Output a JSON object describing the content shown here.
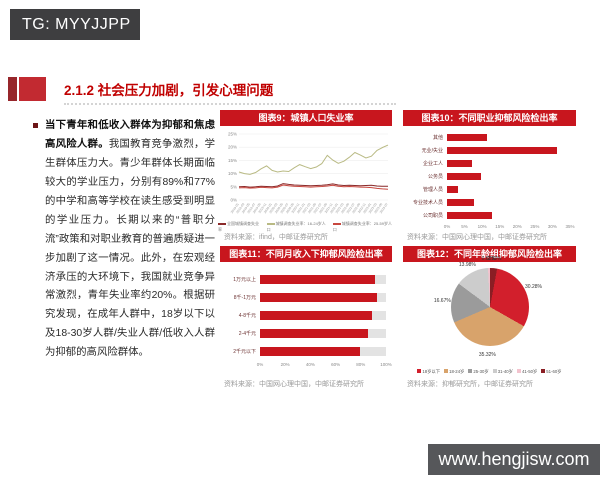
{
  "page": {
    "tg_banner": "TG: MYYJJPP",
    "website_banner": "www.hengjisw.com",
    "section_title": "2.1.2 社会压力加剧，引发心理问题",
    "paragraph_bold": "当下青年和低收入群体为抑郁和焦虑高风险人群。",
    "paragraph_rest": "我国教育竞争激烈，学生群体压力大。青少年群体长期面临较大的学业压力，分别有89%和77%的中学和高等学校在读生感受到明显的学业压力。长期以来的“普职分流”政策和对职业教育的普遍质疑进一步加剧了这一情况。此外，在宏观经济承压的大环境下，我国就业竞争异常激烈，青年失业率约20%。根据研究发现，在成年人群中，18岁以下以及18-30岁人群/失业人群/低收入人群为抑郁的高风险群体。"
  },
  "colors": {
    "header_red": "#c8161e",
    "title_red": "#c00000",
    "bar_red": "#c8161e",
    "banner_dark": "#3e3e40"
  },
  "chart_data": {
    "chart9": {
      "type": "line",
      "title": "图表9：城镇人口失业率",
      "source": "资料来源：ifind，中邮证券研究所",
      "ylim": [
        0,
        25
      ],
      "yticks": [
        "0%",
        "5%",
        "10%",
        "15%",
        "20%",
        "25%"
      ],
      "x_labels": [
        "2019-01",
        "2019-03",
        "2019-05",
        "2019-07",
        "2019-09",
        "2019-11",
        "2020-01",
        "2020-03",
        "2020-05",
        "2020-07",
        "2020-09",
        "2020-11",
        "2021-01",
        "2021-03",
        "2021-05",
        "2021-07",
        "2021-09",
        "2021-11",
        "2022-01",
        "2022-03",
        "2022-05",
        "2022-07",
        "2022-09",
        "2022-11",
        "2023-01",
        "2023-03",
        "2023-05",
        "2023-07"
      ],
      "series": [
        {
          "name": "全国城镇调查失业率",
          "color": "#8b2a2a",
          "values": [
            5.0,
            5.1,
            4.9,
            5.0,
            5.2,
            5.1,
            5.0,
            5.3,
            6.2,
            5.9,
            5.7,
            5.6,
            5.5,
            5.4,
            5.5,
            5.6,
            5.8,
            6.1,
            5.7,
            5.5,
            5.6,
            5.5,
            5.4,
            5.5,
            5.6,
            5.3,
            5.2,
            5.2
          ]
        },
        {
          "name": "城镇调查失业率：16-24岁人口",
          "color": "#b9ba84",
          "values": [
            10.6,
            10.0,
            9.7,
            10.4,
            11.8,
            12.9,
            11.2,
            10.6,
            11.0,
            10.8,
            12.2,
            13.4,
            12.6,
            11.9,
            12.5,
            13.8,
            16.9,
            15.1,
            13.9,
            14.7,
            16.2,
            18.0,
            17.0,
            15.9,
            16.6,
            18.8,
            19.9,
            20.8
          ]
        },
        {
          "name": "城镇调查失业率：25-59岁人口",
          "color": "#c8473f",
          "values": [
            4.6,
            4.7,
            4.5,
            4.6,
            4.8,
            4.7,
            4.6,
            4.9,
            5.7,
            5.4,
            5.2,
            5.1,
            5.0,
            4.9,
            5.0,
            5.1,
            5.3,
            5.6,
            5.2,
            5.0,
            5.1,
            5.0,
            4.9,
            4.8,
            4.7,
            4.4,
            4.2,
            4.1
          ]
        }
      ]
    },
    "chart10": {
      "type": "bar",
      "title": "图表10：不同职业抑郁风险检出率",
      "source": "资料来源：中国网心理中国，中邮证券研究所",
      "categories": [
        "其他",
        "无业/失业",
        "企业工人",
        "公务员",
        "管理人员",
        "专业技术人员",
        "公司职员"
      ],
      "values": [
        11.5,
        31.2,
        7.2,
        9.8,
        3.2,
        7.7,
        12.9
      ],
      "xlim": [
        0,
        35
      ],
      "xticks": [
        0,
        5,
        10,
        15,
        20,
        25,
        30,
        35
      ]
    },
    "chart11": {
      "type": "bar",
      "title": "图表11：不同月收入下抑郁风险检出率",
      "source": "资料来源：中国网心理中国，中邮证券研究所",
      "categories": [
        "1万元以上",
        "8千-1万元",
        "4-8千元",
        "2-4千元",
        "2千元以下"
      ],
      "values": [
        91,
        93,
        89,
        86,
        79
      ],
      "xlim": [
        0,
        100
      ],
      "xticks": [
        0,
        20,
        40,
        60,
        80,
        100
      ]
    },
    "chart12": {
      "type": "pie",
      "title": "图表12：不同年龄组抑郁风险检出率",
      "source": "资料来源：抑郁研究所，中邮证券研究所",
      "slices": [
        {
          "label": "51-60岁",
          "value": 2.93,
          "color": "#8a1e24"
        },
        {
          "label": "18岁以下",
          "value": 30.28,
          "color": "#d21f2c"
        },
        {
          "label": "18-24岁",
          "value": 35.32,
          "color": "#d8a36b"
        },
        {
          "label": "25-30岁",
          "value": 16.67,
          "color": "#9b9b9b"
        },
        {
          "label": "31-40岁",
          "value": 13.98,
          "color": "#cccccc"
        },
        {
          "label": "41-50岁",
          "value": 0.82,
          "color": "#f3c3ce"
        }
      ],
      "legend": [
        {
          "label": "18岁以下",
          "color": "#d21f2c"
        },
        {
          "label": "18-24岁",
          "color": "#d8a36b"
        },
        {
          "label": "25-30岁",
          "color": "#9b9b9b"
        },
        {
          "label": "31-40岁",
          "color": "#cccccc"
        },
        {
          "label": "41-50岁",
          "color": "#f3c3ce"
        },
        {
          "label": "51-60岁",
          "color": "#8a1e24"
        }
      ]
    }
  }
}
